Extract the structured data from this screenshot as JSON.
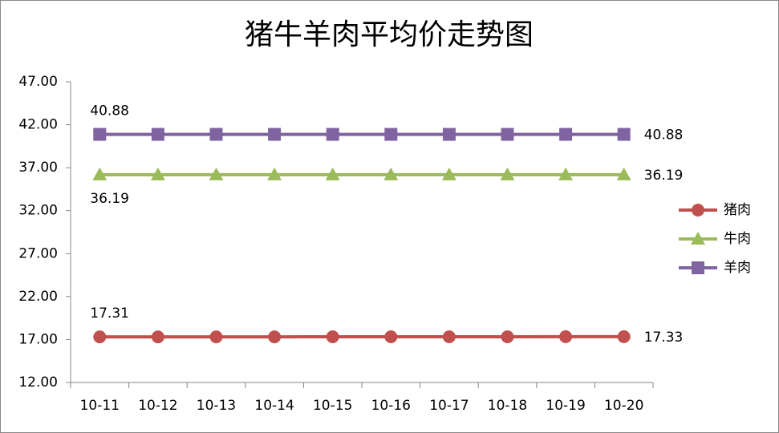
{
  "chart_data": {
    "type": "line",
    "title": "猪牛羊肉平均价走势图",
    "categories": [
      "10-11",
      "10-12",
      "10-13",
      "10-14",
      "10-15",
      "10-16",
      "10-17",
      "10-18",
      "10-19",
      "10-20"
    ],
    "series": [
      {
        "name": "猪肉",
        "color": "#c0504d",
        "marker": "circle",
        "values": [
          17.31,
          17.31,
          17.31,
          17.31,
          17.32,
          17.32,
          17.32,
          17.32,
          17.33,
          17.33
        ],
        "value_labels": [
          "17.31",
          null,
          null,
          null,
          null,
          null,
          null,
          null,
          null,
          "17.33"
        ]
      },
      {
        "name": "牛肉",
        "color": "#9bbb59",
        "marker": "triangle",
        "values": [
          36.19,
          36.19,
          36.19,
          36.19,
          36.19,
          36.19,
          36.19,
          36.19,
          36.19,
          36.19
        ],
        "value_labels": [
          "36.19",
          null,
          null,
          null,
          null,
          null,
          null,
          null,
          null,
          "36.19"
        ]
      },
      {
        "name": "羊肉",
        "color": "#8064a2",
        "marker": "square",
        "values": [
          40.88,
          40.88,
          40.88,
          40.88,
          40.88,
          40.88,
          40.88,
          40.88,
          40.88,
          40.88
        ],
        "value_labels": [
          "40.88",
          null,
          null,
          null,
          null,
          null,
          null,
          null,
          null,
          "40.88"
        ]
      }
    ],
    "ylim": [
      12,
      47
    ],
    "yticks": [
      {
        "value": 12,
        "label": "12.00"
      },
      {
        "value": 17,
        "label": "17.00"
      },
      {
        "value": 22,
        "label": "22.00"
      },
      {
        "value": 27,
        "label": "27.00"
      },
      {
        "value": 32,
        "label": "32.00"
      },
      {
        "value": 37,
        "label": "37.00"
      },
      {
        "value": 42,
        "label": "42.00"
      },
      {
        "value": 47,
        "label": "47.00"
      }
    ],
    "grid": false,
    "legend": "right"
  }
}
